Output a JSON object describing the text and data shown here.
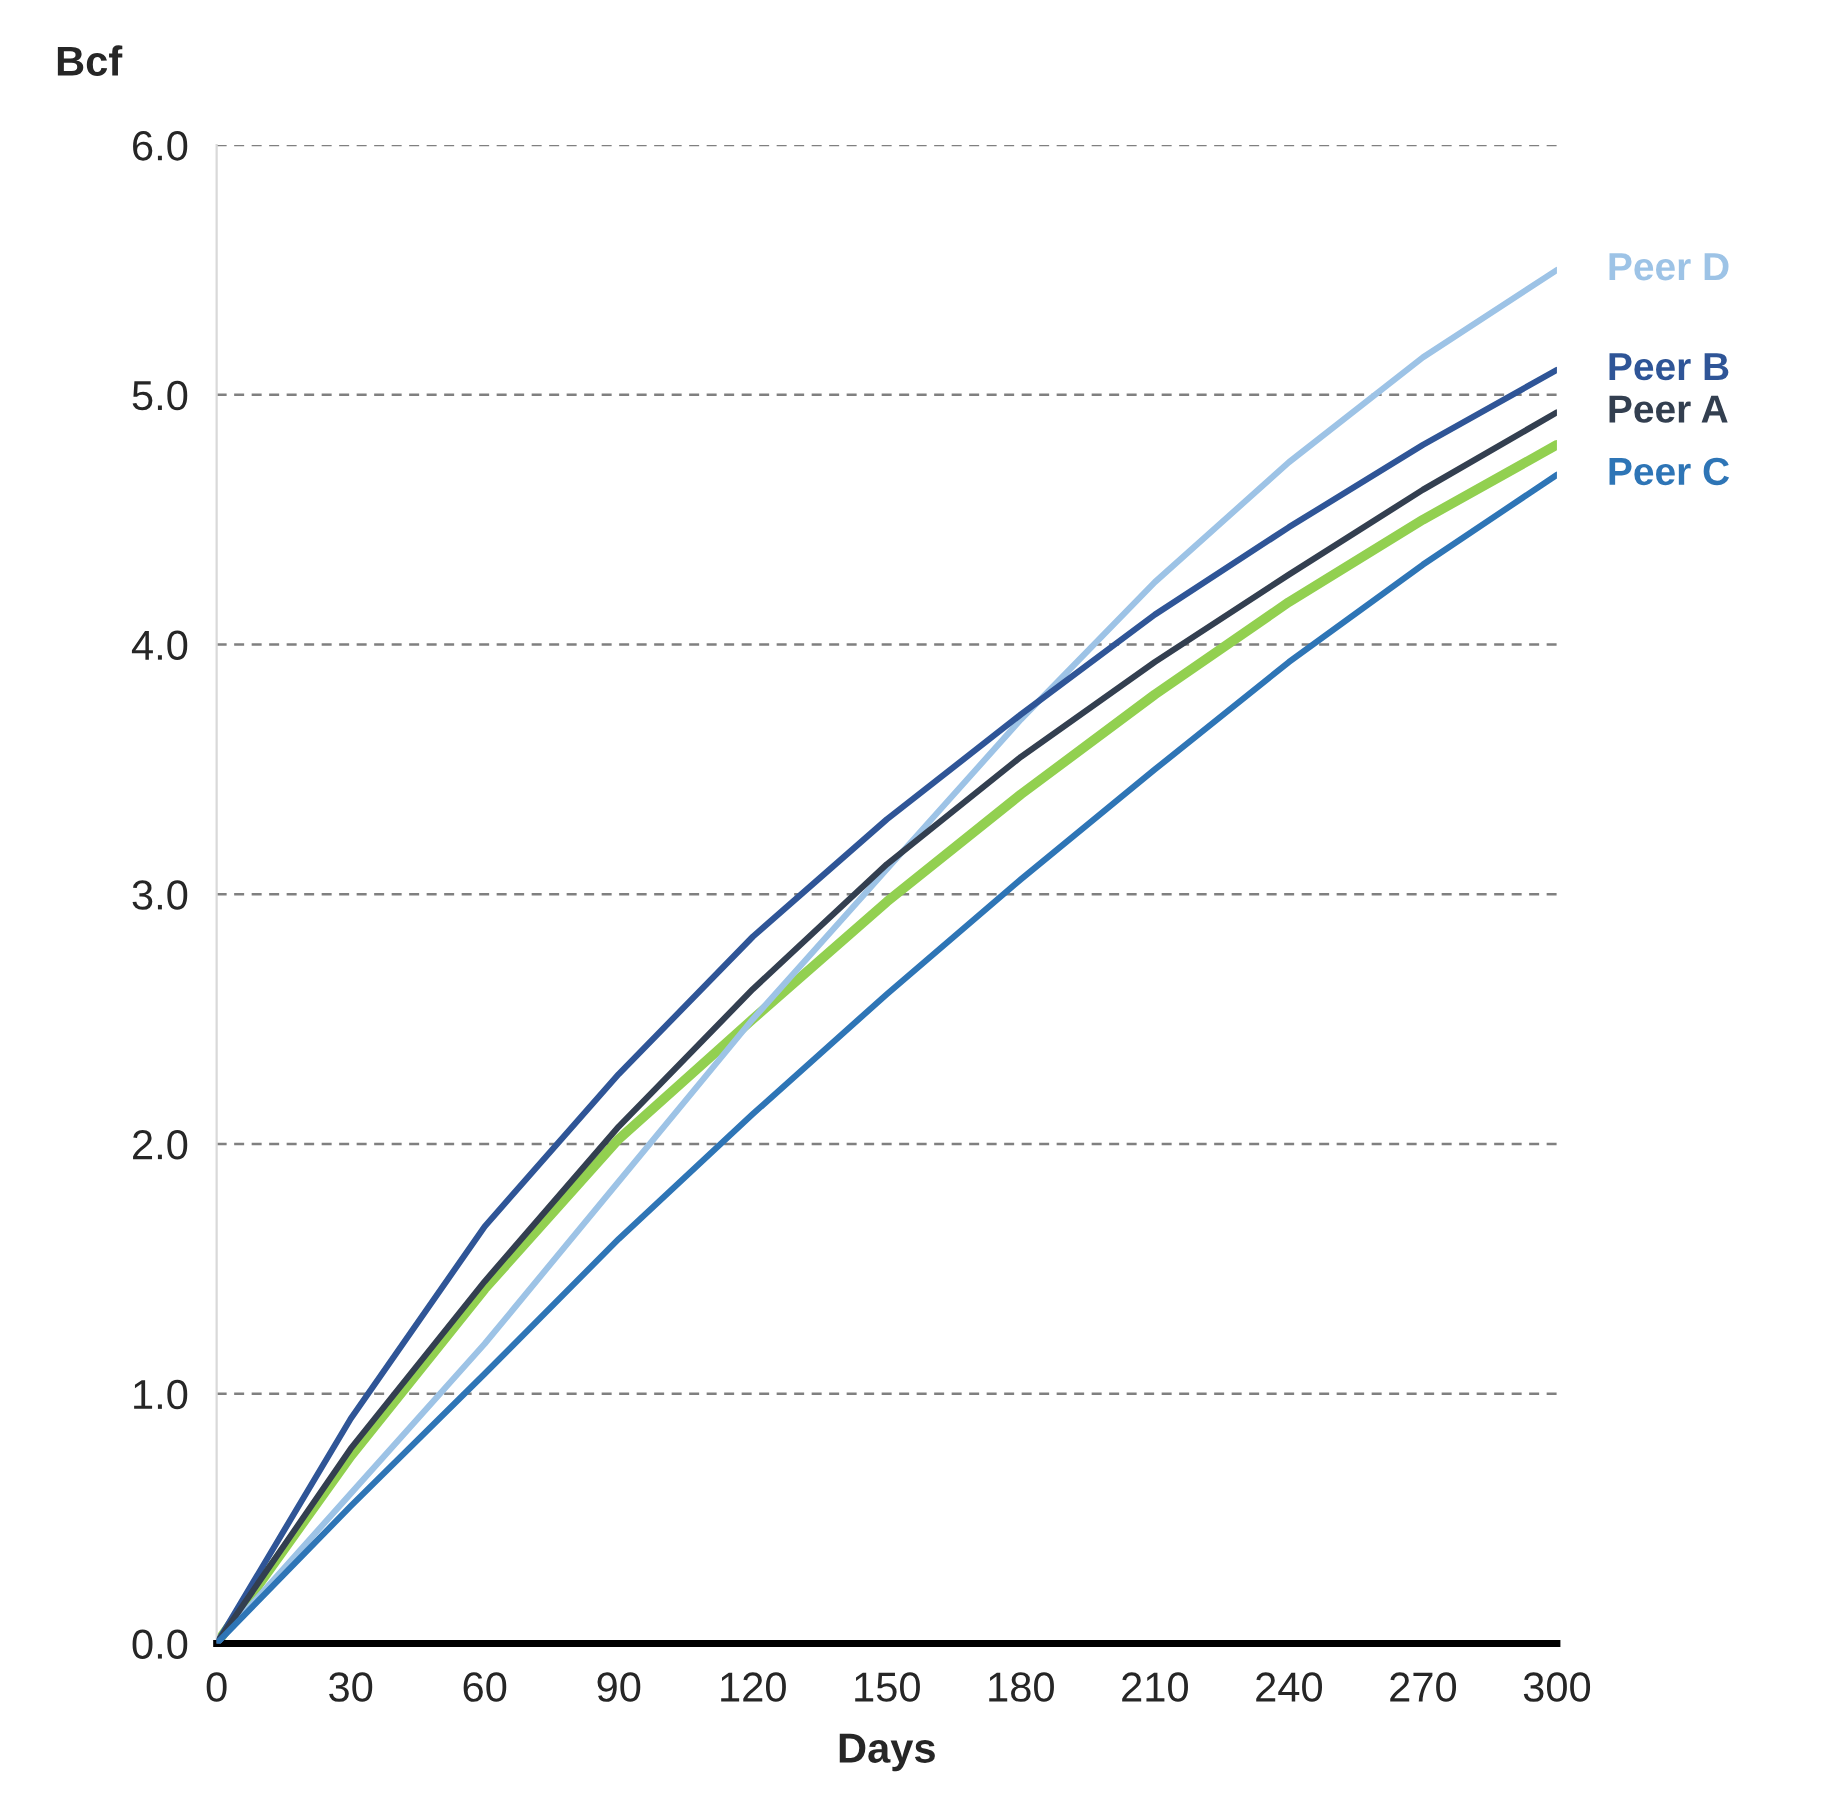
{
  "chart_data": {
    "type": "line",
    "xlabel": "Days",
    "ylabel": "Bcf",
    "x": [
      0,
      30,
      60,
      90,
      120,
      150,
      180,
      210,
      240,
      270,
      300
    ],
    "xlim": [
      0,
      300
    ],
    "xticks": [
      0,
      30,
      60,
      90,
      120,
      150,
      180,
      210,
      240,
      270,
      300
    ],
    "ylim": [
      0,
      6
    ],
    "yticks": [
      {
        "value": 0,
        "label": "0.0"
      },
      {
        "value": 1,
        "label": "1.0"
      },
      {
        "value": 2,
        "label": "2.0"
      },
      {
        "value": 3,
        "label": "3.0"
      },
      {
        "value": 4,
        "label": "4.0"
      },
      {
        "value": 5,
        "label": "5.0"
      },
      {
        "value": 6,
        "label": "6.0"
      }
    ],
    "grid": "y",
    "legend": false,
    "marker": "none",
    "line_style": "solid",
    "series": [
      {
        "name": "Peer D",
        "color": "#9dc3e6",
        "values": [
          0,
          0.6,
          1.2,
          1.85,
          2.5,
          3.1,
          3.7,
          4.25,
          4.73,
          5.15,
          5.5
        ]
      },
      {
        "name": "Peer B",
        "color": "#2f5597",
        "values": [
          0,
          0.9,
          1.67,
          2.28,
          2.83,
          3.3,
          3.72,
          4.12,
          4.47,
          4.8,
          5.1
        ]
      },
      {
        "name": "Peer A",
        "color": "#333f50",
        "values": [
          0,
          0.78,
          1.45,
          2.07,
          2.62,
          3.12,
          3.55,
          3.93,
          4.28,
          4.62,
          4.93
        ]
      },
      {
        "color": "#92d050",
        "values": [
          0,
          0.75,
          1.42,
          2.02,
          2.5,
          2.97,
          3.4,
          3.8,
          4.17,
          4.5,
          4.8
        ]
      },
      {
        "name": "Peer C",
        "color": "#2e75b6",
        "values": [
          0,
          0.55,
          1.08,
          1.62,
          2.12,
          2.6,
          3.06,
          3.5,
          3.93,
          4.32,
          4.68
        ]
      }
    ]
  }
}
